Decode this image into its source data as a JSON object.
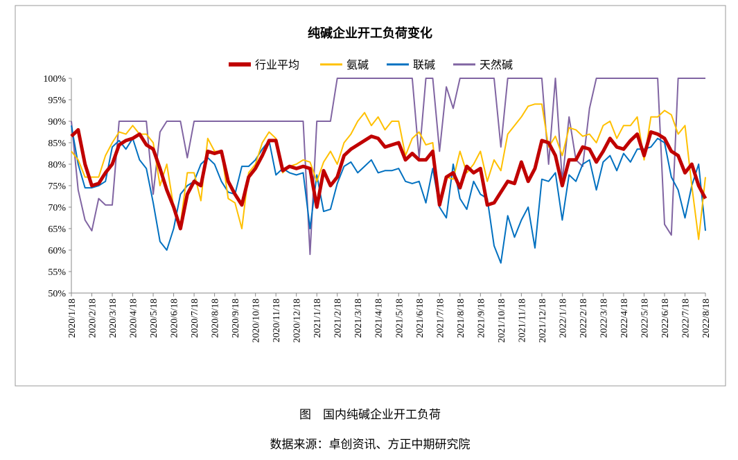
{
  "chart_data": {
    "type": "line",
    "title": "纯碱企业开工负荷变化",
    "caption": "图　国内纯碱企业开工负荷",
    "source": "数据来源：卓创资讯、方正中期研究院",
    "categories": [
      "2020/1/18",
      null,
      null,
      "2020/2/18",
      null,
      null,
      "2020/3/18",
      null,
      null,
      "2020/4/18",
      null,
      null,
      "2020/5/18",
      null,
      null,
      "2020/6/18",
      null,
      null,
      "2020/7/18",
      null,
      null,
      "2020/8/18",
      null,
      null,
      "2020/9/18",
      null,
      null,
      "2020/10/18",
      null,
      null,
      "2020/11/18",
      null,
      null,
      "2020/12/18",
      null,
      null,
      "2021/1/18",
      null,
      null,
      "2021/2/18",
      null,
      null,
      "2021/3/18",
      null,
      null,
      "2021/4/18",
      null,
      null,
      "2021/5/18",
      null,
      null,
      "2021/6/18",
      null,
      null,
      "2021/7/18",
      null,
      null,
      "2021/8/18",
      null,
      null,
      "2021/9/18",
      null,
      null,
      "2021/10/18",
      null,
      null,
      "2021/11/18",
      null,
      null,
      "2021/12/18",
      null,
      null,
      "2022/1/18",
      null,
      null,
      "2022/2/18",
      null,
      null,
      "2022/3/18",
      null,
      null,
      "2022/4/18",
      null,
      null,
      "2022/5/18",
      null,
      null,
      "2022/6/18",
      null,
      null,
      "2022/7/18",
      null,
      null,
      "2022/8/18"
    ],
    "series": [
      {
        "name": "行业平均",
        "color": "#c00000",
        "width": 5,
        "values": [
          86.5,
          88,
          80,
          75,
          75.5,
          78,
          80,
          84.5,
          85.5,
          86,
          87,
          84.5,
          83.5,
          79,
          74,
          70,
          65,
          73,
          76,
          75,
          83,
          82.5,
          83,
          76,
          73,
          70.5,
          77,
          79,
          82,
          85.5,
          85.5,
          78.5,
          79.5,
          79,
          79.5,
          79,
          70,
          78.5,
          75,
          77,
          82,
          83.5,
          84.5,
          85.5,
          86.5,
          86,
          84,
          84.5,
          85,
          81,
          82.5,
          81,
          81,
          83,
          70.5,
          77,
          78,
          74.5,
          79.5,
          78,
          79,
          70.5,
          71,
          73.5,
          76,
          75.5,
          80.5,
          76,
          79,
          85.5,
          85,
          82,
          75,
          81,
          81,
          84,
          83.5,
          80.5,
          83,
          86,
          84,
          83.5,
          85.5,
          87,
          82,
          87.5,
          87,
          86,
          83,
          82,
          78,
          80,
          75,
          72
        ]
      },
      {
        "name": "氨碱",
        "color": "#ffc000",
        "width": 2,
        "values": [
          83,
          81,
          77,
          77,
          77,
          82,
          85,
          87.5,
          87,
          89,
          87,
          87,
          85,
          75,
          80,
          70,
          66,
          78,
          78,
          71.5,
          86,
          83,
          83,
          72,
          71,
          65,
          78,
          80,
          85,
          87.5,
          86,
          78,
          79.5,
          80,
          81,
          80.5,
          76,
          80.5,
          83,
          80,
          85,
          87,
          90,
          92,
          89,
          91,
          88,
          90,
          90,
          82,
          86,
          87.5,
          84.5,
          85,
          71,
          77,
          76.5,
          83,
          78,
          80,
          83,
          76,
          81,
          78.5,
          87,
          89,
          91,
          93.5,
          94,
          94,
          84,
          86.5,
          82,
          88.5,
          88,
          86.5,
          87,
          85,
          89,
          90,
          86,
          89,
          89,
          91,
          81,
          91,
          91,
          92.5,
          91.5,
          87,
          89,
          75,
          62.5,
          77
        ]
      },
      {
        "name": "联碱",
        "color": "#0070c0",
        "width": 2,
        "values": [
          89,
          80,
          74.5,
          74.5,
          75,
          76,
          84,
          85.5,
          83.5,
          86,
          81,
          79,
          71,
          62,
          60,
          65,
          73,
          75,
          76,
          80,
          81.5,
          80,
          76,
          73.5,
          73,
          79.5,
          79.5,
          81,
          83.5,
          85.5,
          77.5,
          79,
          78,
          77.5,
          78,
          65,
          77.5,
          69,
          69.5,
          75.5,
          79.5,
          80.5,
          78,
          79.5,
          81,
          78,
          78.5,
          78.5,
          79,
          76,
          75.5,
          76,
          71,
          79,
          70,
          67.5,
          80,
          72,
          69.5,
          76,
          73,
          72,
          61,
          57,
          68,
          63,
          67,
          70,
          60.5,
          76.5,
          76,
          78,
          67,
          77.5,
          76,
          80,
          81,
          74,
          80.5,
          82,
          78.5,
          82.5,
          80.5,
          83.5,
          83.5,
          84,
          86,
          85,
          77,
          74,
          67.5,
          75,
          80,
          64.5
        ]
      },
      {
        "name": "天然碱",
        "color": "#8064a2",
        "width": 2,
        "values": [
          90,
          74,
          67,
          64.5,
          72,
          70.5,
          70.5,
          90,
          90,
          90,
          90,
          90,
          73,
          87.5,
          90,
          90,
          90,
          81.5,
          90,
          90,
          90,
          90,
          90,
          90,
          90,
          90,
          90,
          90,
          90,
          90,
          90,
          90,
          90,
          90,
          90,
          59,
          90,
          90,
          90,
          100,
          100,
          100,
          100,
          100,
          100,
          100,
          100,
          100,
          100,
          100,
          100,
          81.5,
          100,
          100,
          83,
          98,
          93,
          100,
          100,
          100,
          100,
          100,
          100,
          84,
          100,
          100,
          100,
          100,
          100,
          100,
          80,
          100,
          76,
          91,
          81,
          79.5,
          93,
          100,
          100,
          100,
          100,
          100,
          100,
          100,
          100,
          100,
          100,
          66,
          63.5,
          100,
          100,
          100,
          100,
          100
        ]
      }
    ],
    "ylim": [
      50,
      100
    ],
    "yticks": [
      {
        "value": 50,
        "label": "50%"
      },
      {
        "value": 55,
        "label": "55%"
      },
      {
        "value": 60,
        "label": "60%"
      },
      {
        "value": 65,
        "label": "65%"
      },
      {
        "value": 70,
        "label": "70%"
      },
      {
        "value": 75,
        "label": "75%"
      },
      {
        "value": 80,
        "label": "80%"
      },
      {
        "value": 85,
        "label": "85%"
      },
      {
        "value": 90,
        "label": "90%"
      },
      {
        "value": 95,
        "label": "95%"
      },
      {
        "value": 100,
        "label": "100%"
      }
    ],
    "grid": false,
    "legend": "top"
  }
}
